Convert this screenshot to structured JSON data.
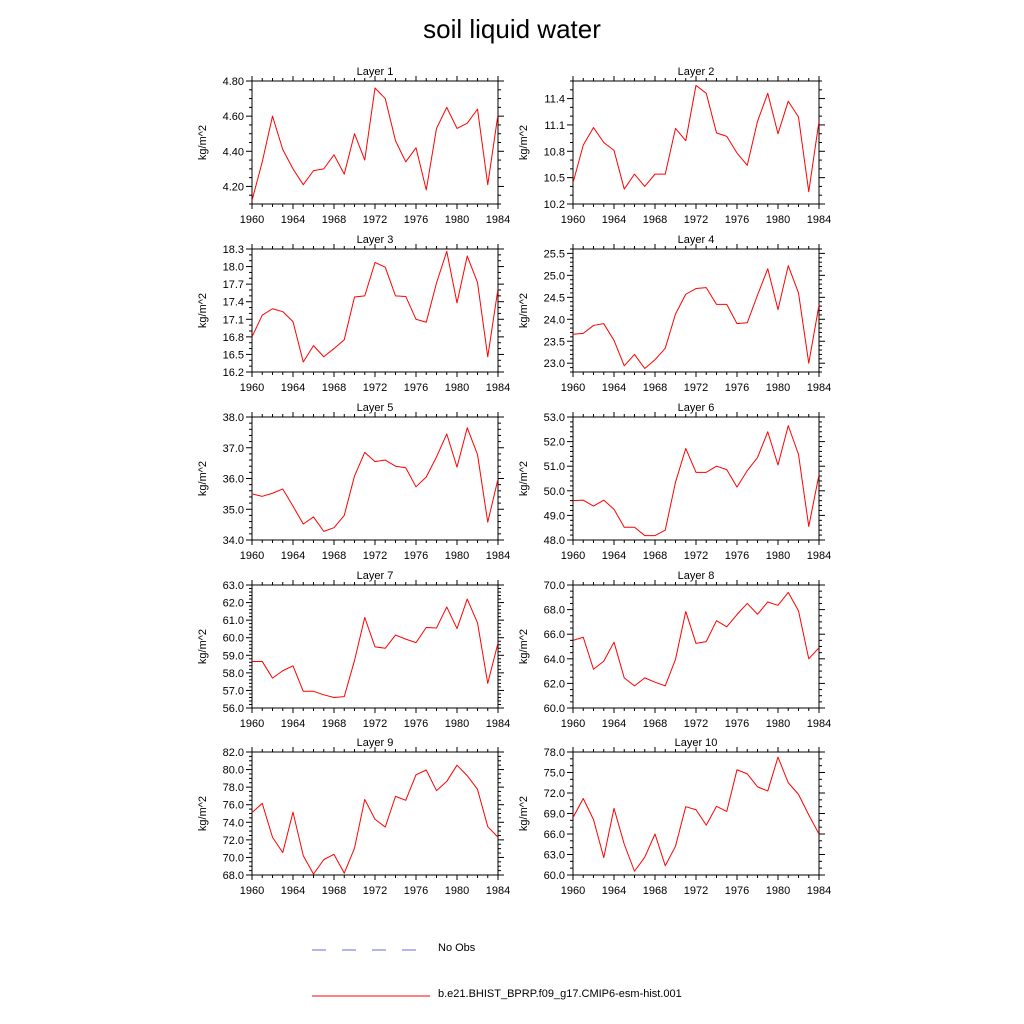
{
  "figure": {
    "title": "soil liquid water",
    "legend": [
      {
        "label": "No Obs",
        "color": "#6a6adf",
        "dash": "dashed"
      },
      {
        "label": "b.e21.BHIST_BPRP.f09_g17.CMIP6-esm-hist.001",
        "color": "#ff0000",
        "dash": "solid"
      }
    ]
  },
  "chart_data": [
    {
      "type": "line",
      "title": "Layer 1",
      "ylabel": "kg/m^2",
      "xlim": [
        1960,
        1984
      ],
      "xticks": [
        1960,
        1964,
        1968,
        1972,
        1976,
        1980,
        1984
      ],
      "ylim": [
        4.1,
        4.8
      ],
      "yticks": [
        4.2,
        4.4,
        4.6,
        4.8
      ],
      "ytick_labels": [
        "4.20",
        "4.40",
        "4.60",
        "4.80"
      ],
      "yminor": 0.05,
      "series": [
        {
          "color": "#ff0000",
          "x": [
            1960,
            1961,
            1962,
            1963,
            1964,
            1965,
            1966,
            1967,
            1968,
            1969,
            1970,
            1971,
            1972,
            1973,
            1974,
            1975,
            1976,
            1977,
            1978,
            1979,
            1980,
            1981,
            1982,
            1983,
            1984
          ],
          "values": [
            4.12,
            4.34,
            4.6,
            4.41,
            4.3,
            4.21,
            4.29,
            4.3,
            4.38,
            4.27,
            4.5,
            4.35,
            4.76,
            4.7,
            4.46,
            4.34,
            4.42,
            4.18,
            4.53,
            4.65,
            4.53,
            4.56,
            4.64,
            4.21,
            4.61
          ]
        }
      ]
    },
    {
      "type": "line",
      "title": "Layer 2",
      "ylabel": "kg/m^2",
      "xlim": [
        1960,
        1984
      ],
      "xticks": [
        1960,
        1964,
        1968,
        1972,
        1976,
        1980,
        1984
      ],
      "ylim": [
        10.2,
        11.6
      ],
      "yticks": [
        10.2,
        10.5,
        10.8,
        11.1,
        11.4
      ],
      "ytick_labels": [
        "10.2",
        "10.5",
        "10.8",
        "11.1",
        "11.4"
      ],
      "yminor": 0.1,
      "series": [
        {
          "color": "#ff0000",
          "x": [
            1960,
            1961,
            1962,
            1963,
            1964,
            1965,
            1966,
            1967,
            1968,
            1969,
            1970,
            1971,
            1972,
            1973,
            1974,
            1975,
            1976,
            1977,
            1978,
            1979,
            1980,
            1981,
            1982,
            1983,
            1984
          ],
          "values": [
            10.44,
            10.87,
            11.07,
            10.9,
            10.81,
            10.37,
            10.54,
            10.4,
            10.54,
            10.54,
            11.06,
            10.92,
            11.55,
            11.46,
            11.01,
            10.97,
            10.78,
            10.64,
            11.14,
            11.46,
            11.0,
            11.37,
            11.19,
            10.34,
            11.14
          ]
        }
      ]
    },
    {
      "type": "line",
      "title": "Layer 3",
      "ylabel": "kg/m^2",
      "xlim": [
        1960,
        1984
      ],
      "xticks": [
        1960,
        1964,
        1968,
        1972,
        1976,
        1980,
        1984
      ],
      "ylim": [
        16.2,
        18.3
      ],
      "yticks": [
        16.2,
        16.5,
        16.8,
        17.1,
        17.4,
        17.7,
        18.0,
        18.3
      ],
      "ytick_labels": [
        "16.2",
        "16.5",
        "16.8",
        "17.1",
        "17.4",
        "17.7",
        "18.0",
        "18.3"
      ],
      "yminor": 0.1,
      "series": [
        {
          "color": "#ff0000",
          "x": [
            1960,
            1961,
            1962,
            1963,
            1964,
            1965,
            1966,
            1967,
            1968,
            1969,
            1970,
            1971,
            1972,
            1973,
            1974,
            1975,
            1976,
            1977,
            1978,
            1979,
            1980,
            1981,
            1982,
            1983,
            1984
          ],
          "values": [
            16.8,
            17.17,
            17.28,
            17.23,
            17.06,
            16.37,
            16.65,
            16.46,
            16.6,
            16.75,
            17.48,
            17.5,
            18.07,
            17.99,
            17.5,
            17.49,
            17.1,
            17.05,
            17.72,
            18.26,
            17.38,
            18.18,
            17.73,
            16.46,
            17.62
          ]
        }
      ]
    },
    {
      "type": "line",
      "title": "Layer 4",
      "ylabel": "kg/m^2",
      "xlim": [
        1960,
        1984
      ],
      "xticks": [
        1960,
        1964,
        1968,
        1972,
        1976,
        1980,
        1984
      ],
      "ylim": [
        22.8,
        25.6
      ],
      "yticks": [
        23.0,
        23.5,
        24.0,
        24.5,
        25.0,
        25.5
      ],
      "ytick_labels": [
        "23.0",
        "23.5",
        "24.0",
        "24.5",
        "25.0",
        "25.5"
      ],
      "yminor": 0.1,
      "series": [
        {
          "color": "#ff0000",
          "x": [
            1960,
            1961,
            1962,
            1963,
            1964,
            1965,
            1966,
            1967,
            1968,
            1969,
            1970,
            1971,
            1972,
            1973,
            1974,
            1975,
            1976,
            1977,
            1978,
            1979,
            1980,
            1981,
            1982,
            1983,
            1984
          ],
          "values": [
            23.66,
            23.68,
            23.86,
            23.9,
            23.52,
            22.94,
            23.2,
            22.88,
            23.08,
            23.34,
            24.12,
            24.57,
            24.7,
            24.72,
            24.34,
            24.34,
            23.9,
            23.92,
            24.55,
            25.15,
            24.22,
            25.22,
            24.6,
            23.0,
            24.32
          ]
        }
      ]
    },
    {
      "type": "line",
      "title": "Layer 5",
      "ylabel": "kg/m^2",
      "xlim": [
        1960,
        1984
      ],
      "xticks": [
        1960,
        1964,
        1968,
        1972,
        1976,
        1980,
        1984
      ],
      "ylim": [
        34.0,
        38.0
      ],
      "yticks": [
        34.0,
        35.0,
        36.0,
        37.0,
        38.0
      ],
      "ytick_labels": [
        "34.0",
        "35.0",
        "36.0",
        "37.0",
        "38.0"
      ],
      "yminor": 0.2,
      "series": [
        {
          "color": "#ff0000",
          "x": [
            1960,
            1961,
            1962,
            1963,
            1964,
            1965,
            1966,
            1967,
            1968,
            1969,
            1970,
            1971,
            1972,
            1973,
            1974,
            1975,
            1976,
            1977,
            1978,
            1979,
            1980,
            1981,
            1982,
            1983,
            1984
          ],
          "values": [
            35.5,
            35.42,
            35.52,
            35.66,
            35.1,
            34.52,
            34.75,
            34.28,
            34.4,
            34.8,
            36.08,
            36.85,
            36.55,
            36.6,
            36.4,
            36.35,
            35.73,
            36.05,
            36.7,
            37.45,
            36.37,
            37.65,
            36.78,
            34.58,
            35.98
          ]
        }
      ]
    },
    {
      "type": "line",
      "title": "Layer 6",
      "ylabel": "kg/m^2",
      "xlim": [
        1960,
        1984
      ],
      "xticks": [
        1960,
        1964,
        1968,
        1972,
        1976,
        1980,
        1984
      ],
      "ylim": [
        48.0,
        53.0
      ],
      "yticks": [
        48.0,
        49.0,
        50.0,
        51.0,
        52.0,
        53.0
      ],
      "ytick_labels": [
        "48.0",
        "49.0",
        "50.0",
        "51.0",
        "52.0",
        "53.0"
      ],
      "yminor": 0.2,
      "series": [
        {
          "color": "#ff0000",
          "x": [
            1960,
            1961,
            1962,
            1963,
            1964,
            1965,
            1966,
            1967,
            1968,
            1969,
            1970,
            1971,
            1972,
            1973,
            1974,
            1975,
            1976,
            1977,
            1978,
            1979,
            1980,
            1981,
            1982,
            1983,
            1984
          ],
          "values": [
            49.6,
            49.62,
            49.38,
            49.62,
            49.25,
            48.52,
            48.52,
            48.18,
            48.18,
            48.4,
            50.35,
            51.72,
            50.75,
            50.75,
            51.0,
            50.86,
            50.15,
            50.82,
            51.35,
            52.4,
            51.05,
            52.65,
            51.48,
            48.55,
            50.65
          ]
        }
      ]
    },
    {
      "type": "line",
      "title": "Layer 7",
      "ylabel": "kg/m^2",
      "xlim": [
        1960,
        1984
      ],
      "xticks": [
        1960,
        1964,
        1968,
        1972,
        1976,
        1980,
        1984
      ],
      "ylim": [
        56.0,
        63.0
      ],
      "yticks": [
        56.0,
        57.0,
        58.0,
        59.0,
        60.0,
        61.0,
        62.0,
        63.0
      ],
      "ytick_labels": [
        "56.0",
        "57.0",
        "58.0",
        "59.0",
        "60.0",
        "61.0",
        "62.0",
        "63.0"
      ],
      "yminor": 0.2,
      "series": [
        {
          "color": "#ff0000",
          "x": [
            1960,
            1961,
            1962,
            1963,
            1964,
            1965,
            1966,
            1967,
            1968,
            1969,
            1970,
            1971,
            1972,
            1973,
            1974,
            1975,
            1976,
            1977,
            1978,
            1979,
            1980,
            1981,
            1982,
            1983,
            1984
          ],
          "values": [
            58.65,
            58.65,
            57.7,
            58.12,
            58.4,
            56.95,
            56.95,
            56.75,
            56.6,
            56.65,
            58.7,
            61.15,
            59.48,
            59.4,
            60.15,
            59.92,
            59.72,
            60.58,
            60.55,
            61.75,
            60.52,
            62.2,
            60.85,
            57.4,
            59.7
          ]
        }
      ]
    },
    {
      "type": "line",
      "title": "Layer 8",
      "ylabel": "kg/m^2",
      "xlim": [
        1960,
        1984
      ],
      "xticks": [
        1960,
        1964,
        1968,
        1972,
        1976,
        1980,
        1984
      ],
      "ylim": [
        60.0,
        70.0
      ],
      "yticks": [
        60.0,
        62.0,
        64.0,
        66.0,
        68.0,
        70.0
      ],
      "ytick_labels": [
        "60.0",
        "62.0",
        "64.0",
        "66.0",
        "68.0",
        "70.0"
      ],
      "yminor": 0.5,
      "series": [
        {
          "color": "#ff0000",
          "x": [
            1960,
            1961,
            1962,
            1963,
            1964,
            1965,
            1966,
            1967,
            1968,
            1969,
            1970,
            1971,
            1972,
            1973,
            1974,
            1975,
            1976,
            1977,
            1978,
            1979,
            1980,
            1981,
            1982,
            1983,
            1984
          ],
          "values": [
            65.5,
            65.75,
            63.15,
            63.8,
            65.35,
            62.45,
            61.8,
            62.45,
            62.1,
            61.8,
            63.95,
            67.85,
            65.25,
            65.4,
            67.1,
            66.6,
            67.6,
            68.5,
            67.62,
            68.62,
            68.35,
            69.4,
            67.9,
            64.0,
            64.9
          ]
        }
      ]
    },
    {
      "type": "line",
      "title": "Layer 9",
      "ylabel": "kg/m^2",
      "xlim": [
        1960,
        1984
      ],
      "xticks": [
        1960,
        1964,
        1968,
        1972,
        1976,
        1980,
        1984
      ],
      "ylim": [
        68.0,
        82.0
      ],
      "yticks": [
        68.0,
        70.0,
        72.0,
        74.0,
        76.0,
        78.0,
        80.0,
        82.0
      ],
      "ytick_labels": [
        "68.0",
        "70.0",
        "72.0",
        "74.0",
        "76.0",
        "78.0",
        "80.0",
        "82.0"
      ],
      "yminor": 0.5,
      "series": [
        {
          "color": "#ff0000",
          "x": [
            1960,
            1961,
            1962,
            1963,
            1964,
            1965,
            1966,
            1967,
            1968,
            1969,
            1970,
            1971,
            1972,
            1973,
            1974,
            1975,
            1976,
            1977,
            1978,
            1979,
            1980,
            1981,
            1982,
            1983,
            1984
          ],
          "values": [
            75.1,
            76.15,
            72.3,
            70.55,
            75.15,
            70.2,
            68.1,
            69.75,
            70.35,
            68.2,
            71.05,
            76.6,
            74.35,
            73.45,
            76.95,
            76.5,
            79.4,
            79.95,
            77.6,
            78.65,
            80.5,
            79.3,
            77.75,
            73.5,
            72.3
          ]
        }
      ]
    },
    {
      "type": "line",
      "title": "Layer 10",
      "ylabel": "kg/m^2",
      "xlim": [
        1960,
        1984
      ],
      "xticks": [
        1960,
        1964,
        1968,
        1972,
        1976,
        1980,
        1984
      ],
      "ylim": [
        60.0,
        78.0
      ],
      "yticks": [
        60.0,
        63.0,
        66.0,
        69.0,
        72.0,
        75.0,
        78.0
      ],
      "ytick_labels": [
        "60.0",
        "63.0",
        "66.0",
        "69.0",
        "72.0",
        "75.0",
        "78.0"
      ],
      "yminor": 1.0,
      "series": [
        {
          "color": "#ff0000",
          "x": [
            1960,
            1961,
            1962,
            1963,
            1964,
            1965,
            1966,
            1967,
            1968,
            1969,
            1970,
            1971,
            1972,
            1973,
            1974,
            1975,
            1976,
            1977,
            1978,
            1979,
            1980,
            1981,
            1982,
            1983,
            1984
          ],
          "values": [
            68.4,
            71.2,
            68.1,
            62.55,
            69.75,
            64.5,
            60.55,
            62.6,
            66.0,
            61.35,
            64.2,
            70.0,
            69.55,
            67.3,
            70.05,
            69.3,
            75.4,
            74.8,
            72.9,
            72.3,
            77.25,
            73.5,
            71.8,
            68.8,
            66.0
          ]
        }
      ]
    }
  ]
}
